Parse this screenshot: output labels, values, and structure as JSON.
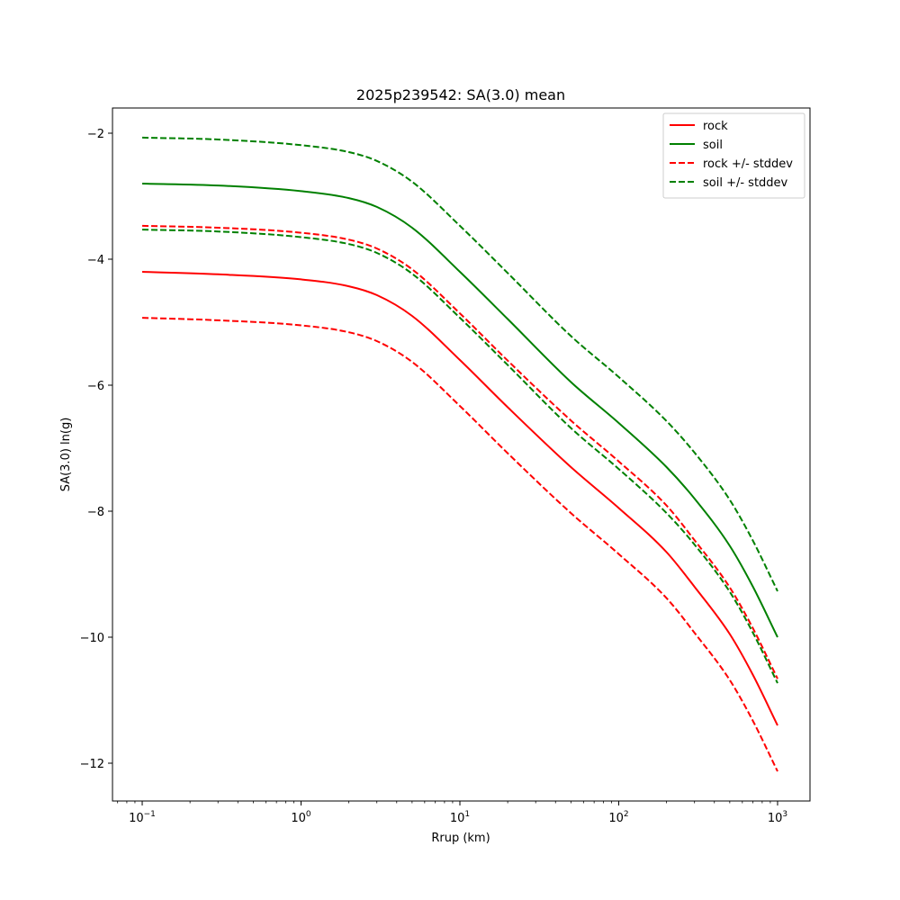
{
  "chart_data": {
    "type": "line",
    "title": "2025p239542: SA(3.0) mean",
    "xlabel": "Rrup (km)",
    "ylabel": "SA(3.0) ln(g)",
    "xscale": "log",
    "xlim": [
      0.065,
      1600
    ],
    "ylim": [
      -12.6,
      -1.6
    ],
    "x_ticks": [
      {
        "value": 0.1,
        "base": "10",
        "exp": "−1"
      },
      {
        "value": 1,
        "base": "10",
        "exp": "0"
      },
      {
        "value": 10,
        "base": "10",
        "exp": "1"
      },
      {
        "value": 100,
        "base": "10",
        "exp": "2"
      },
      {
        "value": 1000,
        "base": "10",
        "exp": "3"
      }
    ],
    "y_ticks": [
      {
        "value": -2,
        "label": "−2"
      },
      {
        "value": -4,
        "label": "−4"
      },
      {
        "value": -6,
        "label": "−6"
      },
      {
        "value": -8,
        "label": "−8"
      },
      {
        "value": -10,
        "label": "−10"
      },
      {
        "value": -12,
        "label": "−12"
      }
    ],
    "grid": false,
    "legend_position": "top-right",
    "x": [
      0.1,
      0.3,
      1,
      2,
      3,
      5,
      10,
      20,
      50,
      100,
      200,
      300,
      500,
      700,
      1000
    ],
    "series": [
      {
        "name": "rock",
        "color": "#ff0000",
        "dash": "solid",
        "values": [
          -4.2,
          -4.24,
          -4.32,
          -4.43,
          -4.57,
          -4.9,
          -5.6,
          -6.35,
          -7.3,
          -7.95,
          -8.65,
          -9.2,
          -9.95,
          -10.6,
          -11.4
        ]
      },
      {
        "name": "soil",
        "color": "#008000",
        "dash": "solid",
        "values": [
          -2.8,
          -2.83,
          -2.92,
          -3.03,
          -3.17,
          -3.5,
          -4.2,
          -4.95,
          -5.95,
          -6.6,
          -7.3,
          -7.8,
          -8.55,
          -9.2,
          -10.0
        ]
      },
      {
        "name": "rock +/- stddev",
        "color": "#ff0000",
        "dash": "dashed",
        "values": [
          -3.47,
          -3.5,
          -3.58,
          -3.69,
          -3.83,
          -4.16,
          -4.86,
          -5.61,
          -6.56,
          -7.21,
          -7.91,
          -8.46,
          -9.21,
          -9.86,
          -10.66
        ]
      },
      {
        "name": "",
        "color": "#ff0000",
        "dash": "dashed",
        "legend": false,
        "values": [
          -4.93,
          -4.97,
          -5.05,
          -5.16,
          -5.3,
          -5.63,
          -6.33,
          -7.08,
          -8.03,
          -8.68,
          -9.38,
          -9.93,
          -10.68,
          -11.33,
          -12.13
        ]
      },
      {
        "name": "soil +/- stddev",
        "color": "#008000",
        "dash": "dashed",
        "values": [
          -2.07,
          -2.1,
          -2.19,
          -2.3,
          -2.44,
          -2.77,
          -3.47,
          -4.22,
          -5.22,
          -5.87,
          -6.57,
          -7.07,
          -7.82,
          -8.47,
          -9.27
        ]
      },
      {
        "name": "",
        "color": "#008000",
        "dash": "dashed",
        "legend": false,
        "values": [
          -3.53,
          -3.56,
          -3.65,
          -3.76,
          -3.9,
          -4.23,
          -4.93,
          -5.68,
          -6.68,
          -7.33,
          -8.03,
          -8.53,
          -9.28,
          -9.93,
          -10.73
        ]
      }
    ]
  }
}
